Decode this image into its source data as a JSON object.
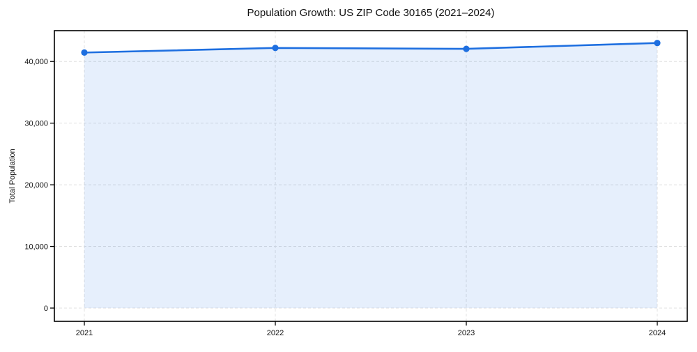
{
  "chart_data": {
    "type": "line",
    "title": "Population Growth: US ZIP Code 30165 (2021–2024)",
    "xlabel": "",
    "ylabel": "Total Population",
    "categories": [
      "2021",
      "2022",
      "2023",
      "2024"
    ],
    "series": [
      {
        "name": "Total Population",
        "values": [
          41450,
          42200,
          42050,
          43000
        ]
      }
    ],
    "y_ticks": [
      0,
      10000,
      20000,
      30000,
      40000
    ],
    "y_tick_labels": [
      "0",
      "10,000",
      "20,000",
      "30,000",
      "40,000"
    ],
    "ylim": [
      -2150,
      45000
    ],
    "grid": "both-dashed",
    "legend": "none",
    "colors": {
      "line": "#1e6fe0",
      "marker": "#1e6fe0",
      "fill": "#1e6fe0",
      "fill_opacity": 0.11,
      "grid": "#e0e0e0",
      "spine": "#000000",
      "text": "#111111",
      "background": "#ffffff"
    }
  }
}
